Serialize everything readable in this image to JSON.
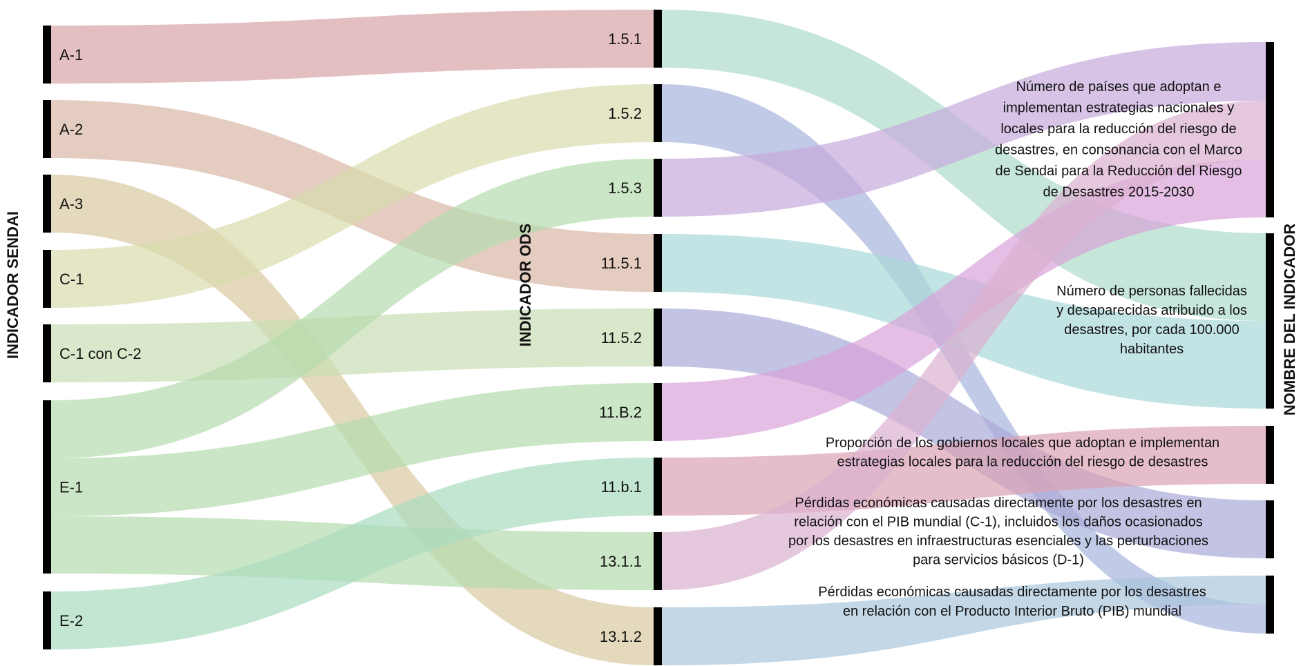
{
  "axes": {
    "left": "INDICADOR SENDAI",
    "middle": "INDICADOR ODS",
    "right": "NOMBRE DEL INDICADOR"
  },
  "sendai_nodes": [
    "A-1",
    "A-2",
    "A-3",
    "C-1",
    "C-1 con C-2",
    "E-1",
    "E-2"
  ],
  "ods_nodes": [
    "1.5.1",
    "1.5.2",
    "1.5.3",
    "11.5.1",
    "11.5.2",
    "11.B.2",
    "11.b.1",
    "13.1.1",
    "13.1.2"
  ],
  "name_nodes": [
    {
      "id": "N1",
      "lines": [
        "Número de países que adoptan e",
        "implementan estrategias nacionales y",
        "locales para la reducción del riesgo de",
        "desastres, en consonancia con el Marco",
        "de Sendai para la Reducción del Riesgo",
        "de Desastres 2015-2030"
      ]
    },
    {
      "id": "N2",
      "lines": [
        "Número de personas fallecidas",
        "y desaparecidas atribuido a los",
        "desastres, por cada 100.000",
        "habitantes"
      ]
    },
    {
      "id": "N3",
      "lines": [
        "Proporción de los gobiernos locales que adoptan e  implementan",
        "estrategias locales para la reducción del riesgo de desastres"
      ]
    },
    {
      "id": "N4",
      "lines": [
        "Pérdidas económicas causadas directamente por los desastres en",
        "relación con el PIB mundial (C-1), incluidos los daños ocasionados",
        "por los desastres en infraestructuras esenciales y las perturbaciones",
        "para servicios básicos (D-1)"
      ]
    },
    {
      "id": "N5",
      "lines": [
        "Pérdidas económicas causadas directamente por los desastres",
        "en relación con el Producto Interior Bruto (PIB) mundial"
      ]
    }
  ],
  "links_left": [
    {
      "source": "A-1",
      "target": "1.5.1",
      "color": "#d9a4a8"
    },
    {
      "source": "A-2",
      "target": "11.5.1",
      "color": "#d8b6a6"
    },
    {
      "source": "A-3",
      "target": "13.1.2",
      "color": "#d8c9a0"
    },
    {
      "source": "C-1",
      "target": "1.5.2",
      "color": "#d8dcac"
    },
    {
      "source": "C-1 con C-2",
      "target": "11.5.2",
      "color": "#c9deb4"
    },
    {
      "source": "E-1",
      "target": "1.5.3",
      "color": "#b5dcae"
    },
    {
      "source": "E-1",
      "target": "11.B.2",
      "color": "#b5dcae"
    },
    {
      "source": "E-1",
      "target": "13.1.1",
      "color": "#b5dcae"
    },
    {
      "source": "E-2",
      "target": "11.b.1",
      "color": "#a9dcbf"
    }
  ],
  "links_right": [
    {
      "source": "1.5.1",
      "target": "N2",
      "color": "#aedcc9"
    },
    {
      "source": "1.5.2",
      "target": "N5",
      "color": "#a7b3dc"
    },
    {
      "source": "1.5.3",
      "target": "N1",
      "color": "#c6a9dc"
    },
    {
      "source": "11.5.1",
      "target": "N2",
      "color": "#a9d9d9"
    },
    {
      "source": "11.5.2",
      "target": "N4",
      "color": "#a9a9d9"
    },
    {
      "source": "11.B.2",
      "target": "N1",
      "color": "#d8a2d8"
    },
    {
      "source": "11.b.1",
      "target": "N3",
      "color": "#dba2b4"
    },
    {
      "source": "13.1.1",
      "target": "N1",
      "color": "#dcb0d0"
    },
    {
      "source": "13.1.2",
      "target": "N5",
      "color": "#a9c6dc"
    }
  ]
}
